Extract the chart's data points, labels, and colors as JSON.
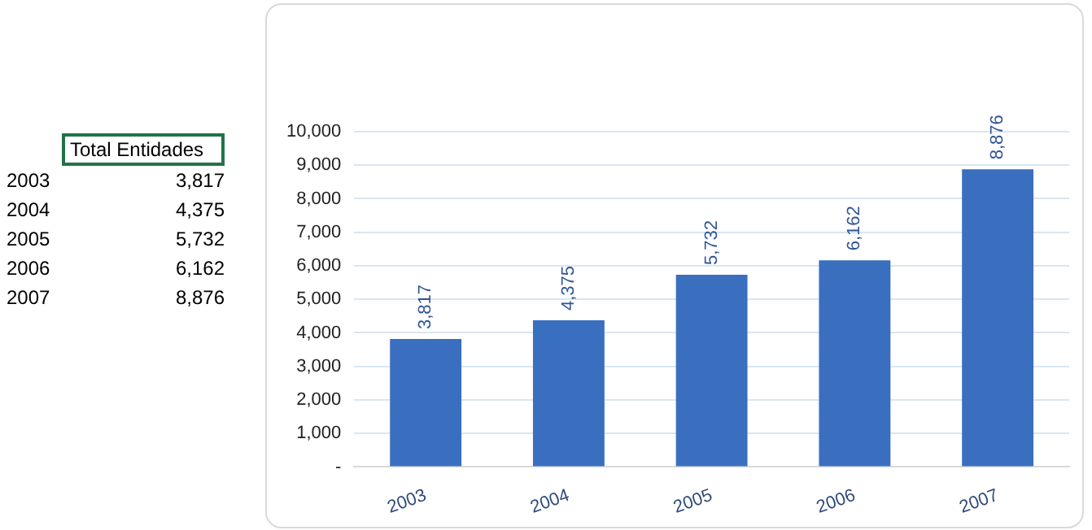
{
  "chart_data": {
    "type": "bar",
    "categories": [
      "2003",
      "2004",
      "2005",
      "2006",
      "2007"
    ],
    "series": [
      {
        "name": "Total Entidades",
        "color": "#3a6fbf",
        "values": [
          3817,
          4375,
          5732,
          6162,
          8876
        ],
        "value_labels": [
          "3,817",
          "4,375",
          "5,732",
          "6,162",
          "8,876"
        ]
      }
    ],
    "ylim": [
      0,
      10000
    ],
    "yticks": [
      {
        "value": 0,
        "label": "-"
      },
      {
        "value": 1000,
        "label": "1,000"
      },
      {
        "value": 2000,
        "label": "2,000"
      },
      {
        "value": 3000,
        "label": "3,000"
      },
      {
        "value": 4000,
        "label": "4,000"
      },
      {
        "value": 5000,
        "label": "5,000"
      },
      {
        "value": 6000,
        "label": "6,000"
      },
      {
        "value": 7000,
        "label": "7,000"
      },
      {
        "value": 8000,
        "label": "8,000"
      },
      {
        "value": 9000,
        "label": "9,000"
      },
      {
        "value": 10000,
        "label": "10,000"
      }
    ],
    "grid": "y",
    "legend": false
  }
}
